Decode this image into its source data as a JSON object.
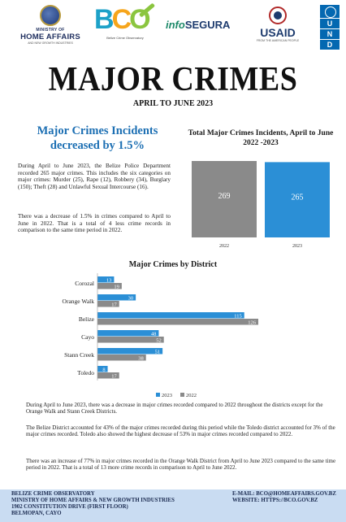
{
  "logos": {
    "mha_small": "MINISTRY OF",
    "mha_big": "HOME AFFAIRS",
    "mha_tag": "AND NEW GROWTH INDUSTRIES",
    "bco_b": "B",
    "bco_c": "C",
    "bco_o": "O",
    "bco_sub": "Belize Crime Observatory",
    "info_a": "info",
    "info_b": "SEGURA",
    "usaid": "USAID",
    "usaid_tag": "FROM THE AMERICAN PEOPLE",
    "undp_letters": [
      "U",
      "N",
      "D",
      "P"
    ]
  },
  "title": "MAJOR CRIMES",
  "subtitle": "APRIL TO JUNE 2023",
  "headline": "Major Crimes Incidents decreased by 1.5%",
  "paragraphs": [
    "During April to June 2023, the Belize Police Department recorded 265 major crimes. This includes the six categories on major crimes: Murder (25), Rape (12), Robbery (34), Burglary (150); Theft (28) and Unlawful Sexual Intercourse (16).",
    "There was a decrease of 1.5% in crimes compared to April to June in 2022. That is a total of 4 less crime records in comparison to the same time period in 2022."
  ],
  "bottom_text": [
    "During April to June 2023, there was a decrease in major crimes recorded compared to 2022 throughout the districts except for the Orange Walk and Stann Creek Districts.",
    "The Belize District accounted for 43% of the major crimes recorded during this period while the Toledo district accounted for 3% of the major crimes recorded. Toledo also showed the highest decrease of 53% in major crimes recorded compared to 2022.",
    "There was an increase of 77% in major crimes recorded in the Orange Walk District from April to June 2023 compared to the same time period in 2022. That is a total of 13 more crime records in comparison to April to June 2022."
  ],
  "footer": {
    "left": [
      "BELIZE CRIME OBSERVATORY",
      "MINISTRY OF HOME AFFAIRS & NEW GROWTH INDUSTRIES",
      "1902 CONSTITUTION DRIVE (FIRST FLOOR)",
      "BELMOPAN, CAYO"
    ],
    "right": [
      "E-MAIL: BCO@HOMEAFFAIRS.GOV.BZ",
      "WEBSITE: HTTPS://BCO.GOV.BZ"
    ]
  },
  "colors": {
    "series_2023": "#2b8fd6",
    "series_2022": "#8a8a8a",
    "headline": "#1c6fb3",
    "footer_bg": "#c9dcf2"
  },
  "chart_data": [
    {
      "type": "bar",
      "title": "Total Major Crimes Incidents, April to June 2022 -2023",
      "categories": [
        "2022",
        "2023"
      ],
      "values": [
        269,
        265
      ],
      "ylim": [
        0,
        269
      ]
    },
    {
      "type": "bar",
      "orientation": "horizontal",
      "title": "Major Crimes by District",
      "categories": [
        "Corozal",
        "Orange Walk",
        "Belize",
        "Cayo",
        "Stann Creek",
        "Toledo"
      ],
      "series": [
        {
          "name": "2023",
          "values": [
            13,
            30,
            115,
            48,
            51,
            8
          ]
        },
        {
          "name": "2022",
          "values": [
            19,
            17,
            126,
            52,
            38,
            17
          ]
        }
      ],
      "xlim": [
        0,
        140
      ],
      "legend": "bottom"
    }
  ]
}
